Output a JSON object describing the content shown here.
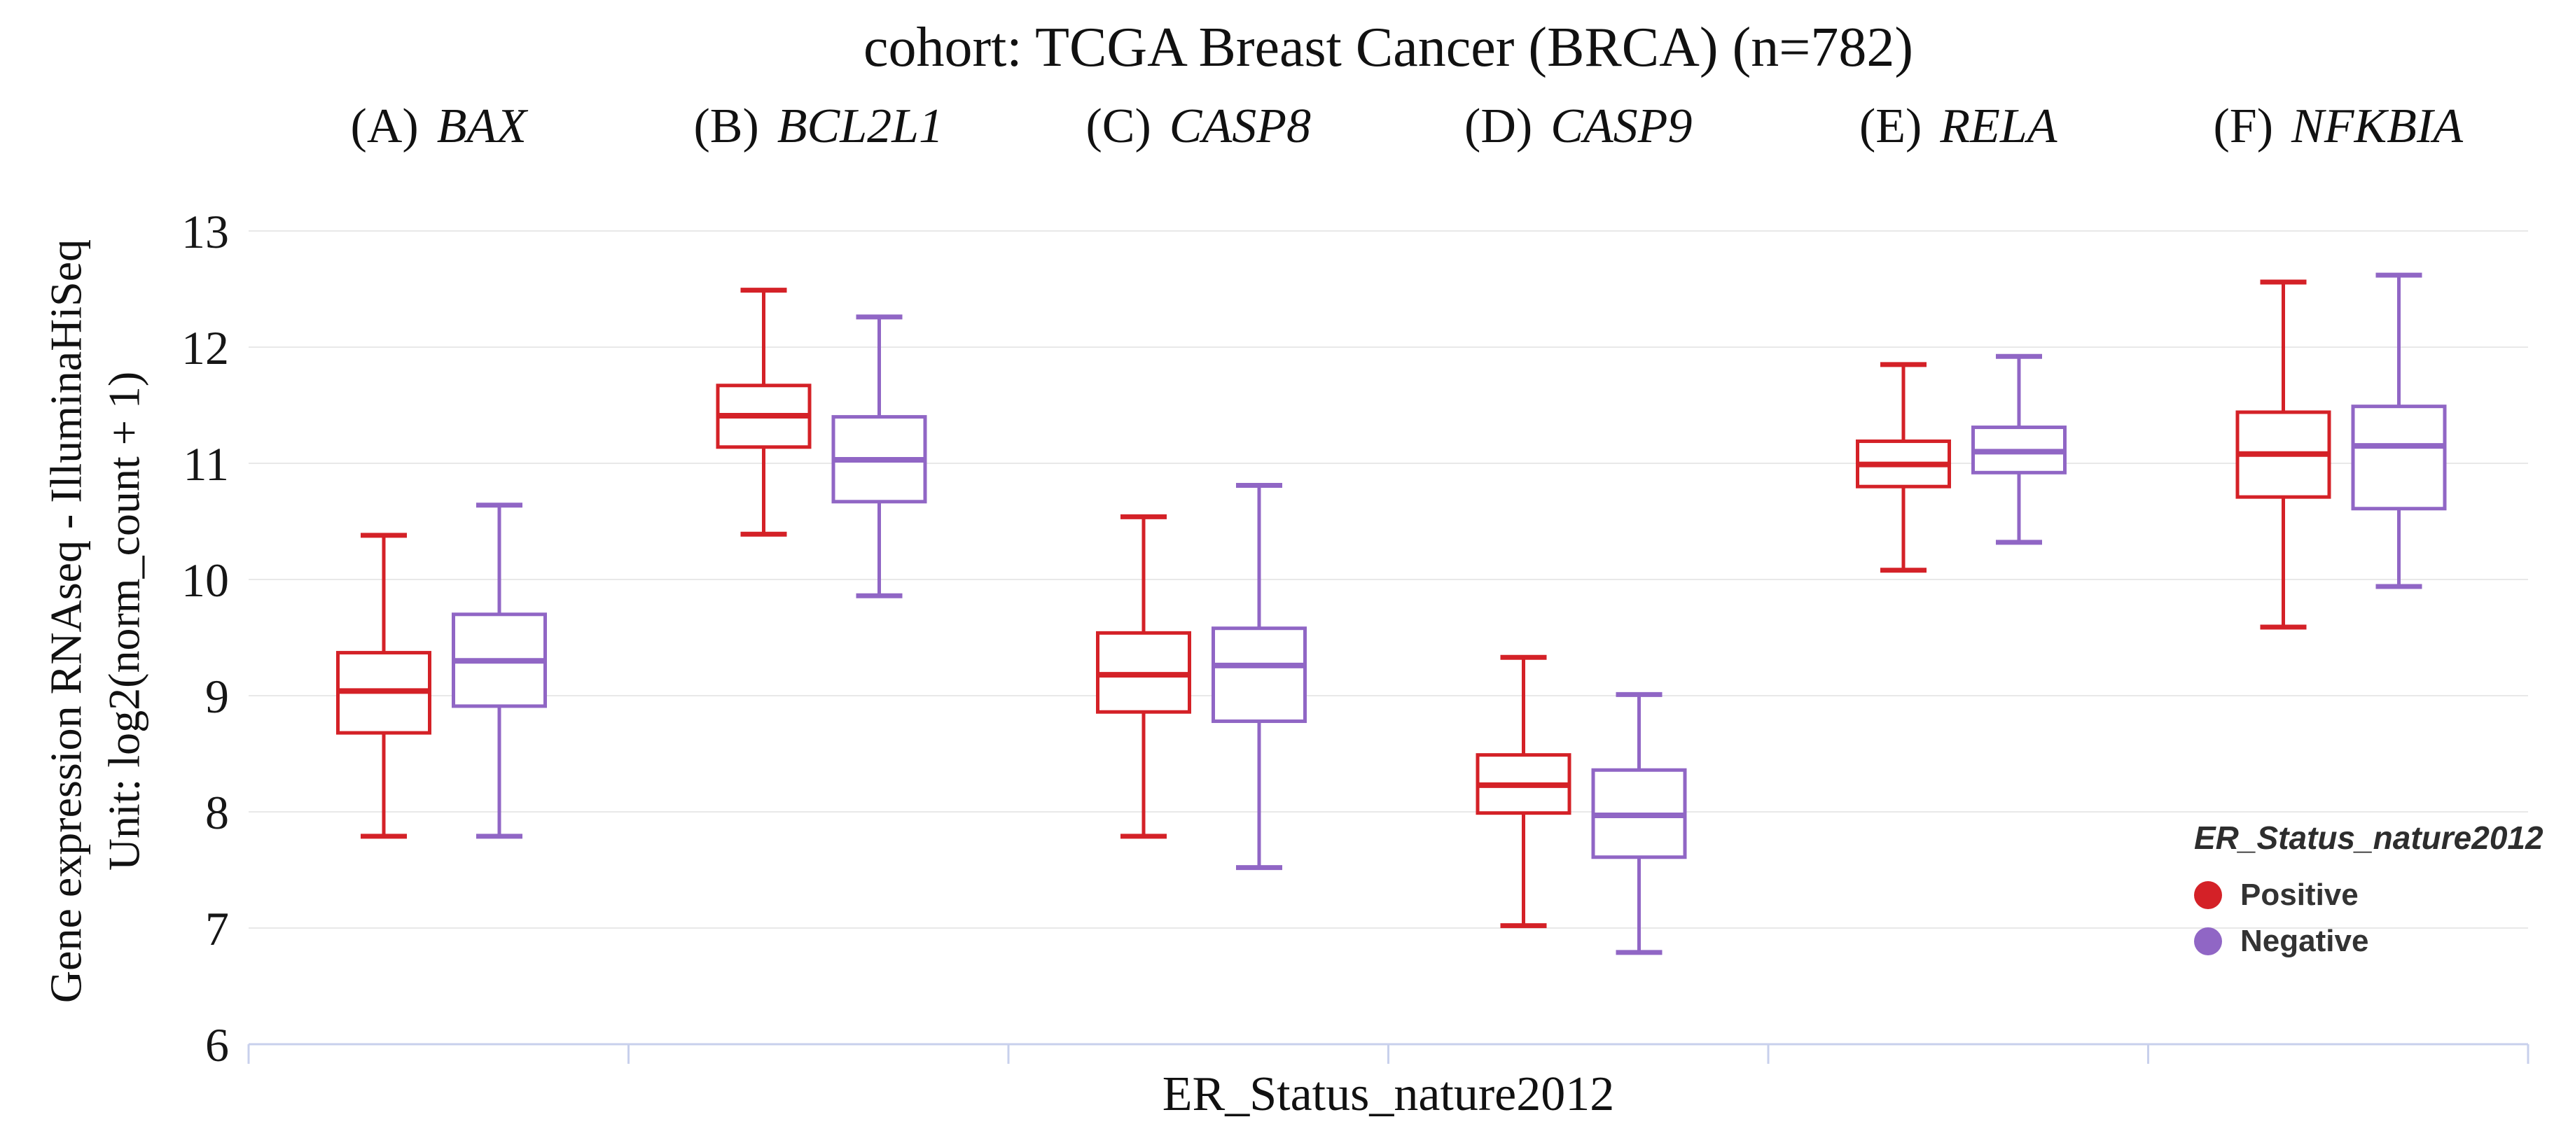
{
  "figure": {
    "title": "cohort: TCGA Breast Cancer (BRCA) (n=782)",
    "x_axis_label": "ER_Status_nature2012",
    "y_axis_label_line1": "Gene expression RNAseq - IlluminaHiSeq",
    "y_axis_label_line2": "Unit: log2(norm_count + 1)"
  },
  "legend": {
    "title": "ER_Status_nature2012",
    "items": [
      {
        "label": "Positive",
        "color": "#d42127"
      },
      {
        "label": "Negative",
        "color": "#9066c5"
      }
    ]
  },
  "colors": {
    "positive": "#d42127",
    "negative": "#9066c5",
    "gridline": "#e8e8e8",
    "axis_line": "#c8d0ec",
    "text": "#161616"
  },
  "chart_data": {
    "type": "box",
    "title": "cohort: TCGA Breast Cancer (BRCA) (n=782)",
    "xlabel": "ER_Status_nature2012",
    "ylabel": "Gene expression RNAseq - IlluminaHiSeq Unit: log2(norm_count + 1)",
    "group_variable": "ER_Status_nature2012",
    "groups": [
      "Positive",
      "Negative"
    ],
    "ylim": [
      6,
      13.4
    ],
    "yticks": [
      6,
      7,
      8,
      9,
      10,
      11,
      12,
      13
    ],
    "grid": true,
    "legend_position": "right-bottom",
    "panels": [
      {
        "tag": "(A)",
        "gene": "BAX",
        "series": [
          {
            "name": "Positive",
            "min": 7.79,
            "q1": 8.68,
            "median": 9.04,
            "q3": 9.37,
            "max": 10.38
          },
          {
            "name": "Negative",
            "min": 7.79,
            "q1": 8.91,
            "median": 9.3,
            "q3": 9.7,
            "max": 10.64
          }
        ]
      },
      {
        "tag": "(B)",
        "gene": "BCL2L1",
        "series": [
          {
            "name": "Positive",
            "min": 10.39,
            "q1": 11.14,
            "median": 11.41,
            "q3": 11.67,
            "max": 12.49
          },
          {
            "name": "Negative",
            "min": 9.86,
            "q1": 10.67,
            "median": 11.03,
            "q3": 11.4,
            "max": 12.26
          }
        ]
      },
      {
        "tag": "(C)",
        "gene": "CASP8",
        "series": [
          {
            "name": "Positive",
            "min": 7.79,
            "q1": 8.86,
            "median": 9.18,
            "q3": 9.54,
            "max": 10.54
          },
          {
            "name": "Negative",
            "min": 7.52,
            "q1": 8.78,
            "median": 9.26,
            "q3": 9.58,
            "max": 10.81
          }
        ]
      },
      {
        "tag": "(D)",
        "gene": "CASP9",
        "series": [
          {
            "name": "Positive",
            "min": 7.02,
            "q1": 7.99,
            "median": 8.23,
            "q3": 8.49,
            "max": 9.33
          },
          {
            "name": "Negative",
            "min": 6.79,
            "q1": 7.61,
            "median": 7.97,
            "q3": 8.36,
            "max": 9.01
          }
        ]
      },
      {
        "tag": "(E)",
        "gene": "RELA",
        "series": [
          {
            "name": "Positive",
            "min": 10.08,
            "q1": 10.8,
            "median": 10.99,
            "q3": 11.19,
            "max": 11.85
          },
          {
            "name": "Negative",
            "min": 10.32,
            "q1": 10.92,
            "median": 11.1,
            "q3": 11.31,
            "max": 11.92
          }
        ]
      },
      {
        "tag": "(F)",
        "gene": "NFKBIA",
        "series": [
          {
            "name": "Positive",
            "min": 9.59,
            "q1": 10.71,
            "median": 11.08,
            "q3": 11.44,
            "max": 12.56
          },
          {
            "name": "Negative",
            "min": 9.94,
            "q1": 10.61,
            "median": 11.15,
            "q3": 11.49,
            "max": 12.62
          }
        ]
      }
    ]
  }
}
